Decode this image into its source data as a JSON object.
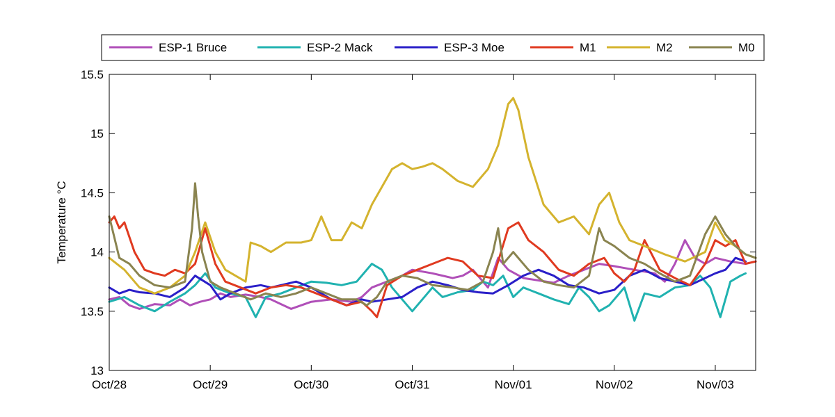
{
  "chart_data": {
    "type": "line",
    "title": "",
    "xlabel": "",
    "ylabel": "Temperature °C",
    "xlim": [
      0,
      6.4
    ],
    "ylim": [
      13,
      15.5
    ],
    "x_ticks": [
      {
        "value": 0,
        "label": "Oct/28"
      },
      {
        "value": 1,
        "label": "Oct/29"
      },
      {
        "value": 2,
        "label": "Oct/30"
      },
      {
        "value": 3,
        "label": "Oct/31"
      },
      {
        "value": 4,
        "label": "Nov/01"
      },
      {
        "value": 5,
        "label": "Nov/02"
      },
      {
        "value": 6,
        "label": "Nov/03"
      }
    ],
    "y_ticks": [
      {
        "value": 13,
        "label": "13"
      },
      {
        "value": 13.5,
        "label": "13.5"
      },
      {
        "value": 14,
        "label": "14"
      },
      {
        "value": 14.5,
        "label": "14.5"
      },
      {
        "value": 15,
        "label": "15"
      },
      {
        "value": 15.5,
        "label": "15.5"
      }
    ],
    "grid": false,
    "legend_position": "top",
    "series": [
      {
        "name": "ESP-1 Bruce",
        "color": "#B04FB8",
        "x": [
          0.0,
          0.1,
          0.2,
          0.3,
          0.45,
          0.6,
          0.7,
          0.8,
          0.9,
          1.0,
          1.1,
          1.2,
          1.35,
          1.5,
          1.6,
          1.7,
          1.8,
          1.9,
          2.0,
          2.2,
          2.4,
          2.5,
          2.6,
          2.75,
          2.9,
          3.0,
          3.2,
          3.4,
          3.5,
          3.6,
          3.75,
          3.85,
          3.95,
          4.1,
          4.25,
          4.4,
          4.55,
          4.7,
          4.85,
          5.0,
          5.2,
          5.4,
          5.5,
          5.6,
          5.7,
          5.8,
          5.9,
          6.0,
          6.15,
          6.3,
          6.4
        ],
        "y": [
          13.6,
          13.62,
          13.55,
          13.52,
          13.56,
          13.55,
          13.6,
          13.55,
          13.58,
          13.6,
          13.65,
          13.62,
          13.64,
          13.62,
          13.6,
          13.56,
          13.52,
          13.55,
          13.58,
          13.6,
          13.58,
          13.62,
          13.7,
          13.75,
          13.8,
          13.85,
          13.82,
          13.78,
          13.8,
          13.85,
          13.7,
          13.95,
          13.85,
          13.78,
          13.76,
          13.74,
          13.8,
          13.85,
          13.9,
          13.88,
          13.85,
          13.82,
          13.75,
          13.9,
          14.1,
          13.95,
          13.9,
          13.95,
          13.92,
          13.9,
          13.92
        ]
      },
      {
        "name": "ESP-2 Mack",
        "color": "#20B2B0",
        "x": [
          0.0,
          0.15,
          0.3,
          0.45,
          0.6,
          0.75,
          0.85,
          0.95,
          1.05,
          1.2,
          1.35,
          1.45,
          1.55,
          1.7,
          1.85,
          2.0,
          2.15,
          2.3,
          2.45,
          2.6,
          2.7,
          2.8,
          2.9,
          3.0,
          3.1,
          3.2,
          3.3,
          3.45,
          3.6,
          3.7,
          3.8,
          3.9,
          4.0,
          4.1,
          4.25,
          4.4,
          4.55,
          4.65,
          4.75,
          4.85,
          4.95,
          5.1,
          5.2,
          5.3,
          5.45,
          5.6,
          5.75,
          5.85,
          5.95,
          6.05,
          6.15,
          6.25,
          6.3
        ],
        "y": [
          13.58,
          13.62,
          13.55,
          13.5,
          13.58,
          13.65,
          13.72,
          13.82,
          13.7,
          13.65,
          13.62,
          13.45,
          13.62,
          13.65,
          13.7,
          13.75,
          13.74,
          13.72,
          13.75,
          13.9,
          13.85,
          13.7,
          13.6,
          13.5,
          13.6,
          13.7,
          13.62,
          13.66,
          13.68,
          13.75,
          13.72,
          13.8,
          13.62,
          13.7,
          13.65,
          13.6,
          13.56,
          13.7,
          13.62,
          13.5,
          13.55,
          13.7,
          13.42,
          13.65,
          13.62,
          13.7,
          13.72,
          13.8,
          13.7,
          13.45,
          13.75,
          13.8,
          13.82
        ]
      },
      {
        "name": "ESP-3 Moe",
        "color": "#2A1FC8",
        "x": [
          0.0,
          0.1,
          0.2,
          0.3,
          0.45,
          0.6,
          0.75,
          0.85,
          1.0,
          1.1,
          1.2,
          1.35,
          1.5,
          1.6,
          1.7,
          1.85,
          2.0,
          2.1,
          2.2,
          2.35,
          2.5,
          2.6,
          2.75,
          2.9,
          3.05,
          3.2,
          3.35,
          3.5,
          3.65,
          3.8,
          3.95,
          4.1,
          4.25,
          4.4,
          4.55,
          4.7,
          4.85,
          5.0,
          5.15,
          5.3,
          5.45,
          5.6,
          5.75,
          5.9,
          6.0,
          6.1,
          6.2,
          6.3
        ],
        "y": [
          13.7,
          13.65,
          13.68,
          13.66,
          13.65,
          13.62,
          13.7,
          13.8,
          13.72,
          13.6,
          13.65,
          13.7,
          13.72,
          13.7,
          13.72,
          13.75,
          13.7,
          13.65,
          13.6,
          13.55,
          13.6,
          13.58,
          13.6,
          13.62,
          13.7,
          13.75,
          13.72,
          13.68,
          13.66,
          13.65,
          13.72,
          13.8,
          13.85,
          13.8,
          13.72,
          13.7,
          13.65,
          13.68,
          13.8,
          13.85,
          13.78,
          13.75,
          13.72,
          13.78,
          13.82,
          13.85,
          13.95,
          13.92
        ]
      },
      {
        "name": "M1",
        "color": "#E03A20",
        "x": [
          0.0,
          0.05,
          0.1,
          0.15,
          0.25,
          0.35,
          0.45,
          0.55,
          0.65,
          0.75,
          0.85,
          0.95,
          1.05,
          1.15,
          1.3,
          1.45,
          1.6,
          1.75,
          1.9,
          2.05,
          2.2,
          2.35,
          2.5,
          2.6,
          2.65,
          2.75,
          2.9,
          3.05,
          3.2,
          3.35,
          3.5,
          3.65,
          3.8,
          3.95,
          4.05,
          4.15,
          4.3,
          4.45,
          4.6,
          4.75,
          4.9,
          5.0,
          5.1,
          5.2,
          5.3,
          5.45,
          5.6,
          5.75,
          5.9,
          6.0,
          6.1,
          6.2,
          6.3,
          6.4
        ],
        "y": [
          14.25,
          14.3,
          14.2,
          14.25,
          14.0,
          13.85,
          13.82,
          13.8,
          13.85,
          13.82,
          13.9,
          14.2,
          13.9,
          13.75,
          13.7,
          13.65,
          13.7,
          13.72,
          13.7,
          13.65,
          13.6,
          13.55,
          13.58,
          13.5,
          13.45,
          13.72,
          13.8,
          13.85,
          13.9,
          13.95,
          13.92,
          13.8,
          13.78,
          14.2,
          14.25,
          14.1,
          14.0,
          13.85,
          13.8,
          13.9,
          13.95,
          13.82,
          13.75,
          13.85,
          14.1,
          13.85,
          13.78,
          13.72,
          13.9,
          14.1,
          14.05,
          14.1,
          13.9,
          13.92
        ]
      },
      {
        "name": "M2",
        "color": "#D4B32E",
        "x": [
          0.0,
          0.15,
          0.3,
          0.45,
          0.6,
          0.75,
          0.85,
          0.95,
          1.05,
          1.15,
          1.25,
          1.35,
          1.4,
          1.5,
          1.6,
          1.75,
          1.9,
          2.0,
          2.1,
          2.2,
          2.3,
          2.4,
          2.5,
          2.6,
          2.7,
          2.8,
          2.9,
          3.0,
          3.1,
          3.2,
          3.3,
          3.45,
          3.6,
          3.75,
          3.85,
          3.95,
          4.0,
          4.05,
          4.15,
          4.3,
          4.45,
          4.6,
          4.75,
          4.85,
          4.95,
          5.05,
          5.15,
          5.3,
          5.5,
          5.7,
          5.9,
          6.0,
          6.1,
          6.2,
          6.3,
          6.4
        ],
        "y": [
          13.95,
          13.85,
          13.7,
          13.65,
          13.7,
          13.8,
          14.0,
          14.25,
          14.0,
          13.85,
          13.8,
          13.75,
          14.08,
          14.05,
          14.0,
          14.08,
          14.08,
          14.1,
          14.3,
          14.1,
          14.1,
          14.25,
          14.2,
          14.4,
          14.55,
          14.7,
          14.75,
          14.7,
          14.72,
          14.75,
          14.7,
          14.6,
          14.55,
          14.7,
          14.9,
          15.25,
          15.3,
          15.2,
          14.8,
          14.4,
          14.25,
          14.3,
          14.15,
          14.4,
          14.5,
          14.25,
          14.1,
          14.05,
          13.98,
          13.92,
          14.0,
          14.25,
          14.1,
          14.05,
          13.98,
          13.95
        ]
      },
      {
        "name": "M0",
        "color": "#8A8450",
        "x": [
          0.0,
          0.1,
          0.2,
          0.3,
          0.45,
          0.6,
          0.75,
          0.82,
          0.85,
          0.88,
          0.92,
          1.0,
          1.1,
          1.25,
          1.4,
          1.55,
          1.7,
          1.85,
          2.0,
          2.15,
          2.3,
          2.45,
          2.55,
          2.65,
          2.75,
          2.9,
          3.05,
          3.2,
          3.4,
          3.55,
          3.7,
          3.8,
          3.85,
          3.9,
          4.0,
          4.15,
          4.3,
          4.45,
          4.6,
          4.75,
          4.85,
          4.9,
          5.0,
          5.15,
          5.3,
          5.45,
          5.6,
          5.75,
          5.9,
          6.0,
          6.1,
          6.2,
          6.3,
          6.4
        ],
        "y": [
          14.3,
          13.95,
          13.9,
          13.8,
          13.72,
          13.7,
          13.75,
          14.2,
          14.58,
          14.3,
          14.0,
          13.75,
          13.7,
          13.65,
          13.6,
          13.65,
          13.62,
          13.65,
          13.7,
          13.65,
          13.6,
          13.6,
          13.55,
          13.62,
          13.75,
          13.8,
          13.78,
          13.72,
          13.7,
          13.68,
          13.75,
          14.0,
          14.2,
          13.9,
          14.0,
          13.85,
          13.75,
          13.72,
          13.7,
          13.8,
          14.2,
          14.1,
          14.05,
          13.95,
          13.9,
          13.82,
          13.75,
          13.8,
          14.15,
          14.3,
          14.15,
          14.05,
          13.98,
          13.95
        ]
      }
    ]
  }
}
